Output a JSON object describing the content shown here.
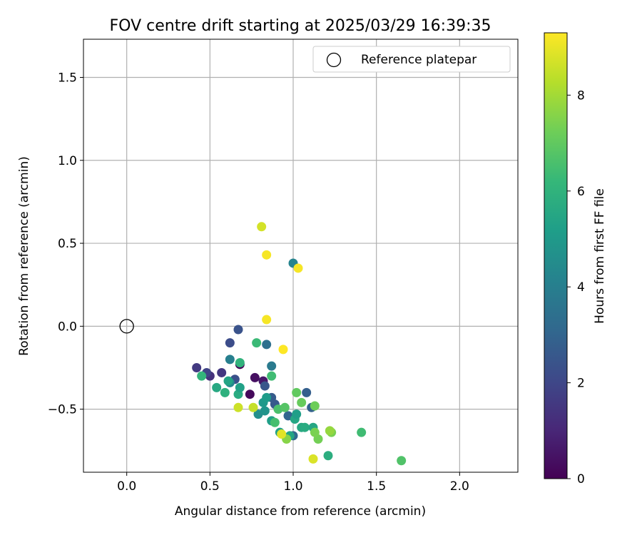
{
  "chart_data": {
    "type": "scatter",
    "title": "FOV centre drift starting at 2025/03/29 16:39:35",
    "xlabel": "Angular distance from reference (arcmin)",
    "ylabel": "Rotation from reference (arcmin)",
    "xlim": [
      -0.26,
      2.35
    ],
    "ylim": [
      -0.88,
      1.73
    ],
    "xticks": [
      0.0,
      0.5,
      1.0,
      1.5,
      2.0
    ],
    "xtick_labels": [
      "0.0",
      "0.5",
      "1.0",
      "1.5",
      "2.0"
    ],
    "yticks": [
      -0.5,
      0.0,
      0.5,
      1.0,
      1.5
    ],
    "ytick_labels": [
      "−0.5",
      "0.0",
      "0.5",
      "1.0",
      "1.5"
    ],
    "grid": true,
    "legend": {
      "placement": "top-right",
      "entries": [
        {
          "label": "Reference platepar",
          "marker": "open-circle"
        }
      ]
    },
    "reference_point": {
      "x": 0.0,
      "y": 0.0
    },
    "colorbar": {
      "label": "Hours from first FF file",
      "colormap": "viridis",
      "range": [
        0,
        9.3
      ],
      "ticks": [
        0,
        2,
        4,
        6,
        8
      ],
      "tick_labels": [
        "0",
        "2",
        "4",
        "6",
        "8"
      ]
    },
    "color_stops": [
      "#440154",
      "#482878",
      "#3e4989",
      "#31688e",
      "#26828e",
      "#1f9e89",
      "#35b779",
      "#6ece58",
      "#b5de2b",
      "#fde725"
    ],
    "points": [
      {
        "x": 0.68,
        "y": -0.23,
        "t": 0.1
      },
      {
        "x": 0.74,
        "y": -0.41,
        "t": 0.2
      },
      {
        "x": 0.77,
        "y": -0.31,
        "t": 0.4
      },
      {
        "x": 0.82,
        "y": -0.33,
        "t": 0.6
      },
      {
        "x": 0.5,
        "y": -0.3,
        "t": 1.3
      },
      {
        "x": 0.42,
        "y": -0.25,
        "t": 1.6
      },
      {
        "x": 0.48,
        "y": -0.28,
        "t": 1.9
      },
      {
        "x": 0.57,
        "y": -0.28,
        "t": 1.5
      },
      {
        "x": 0.62,
        "y": -0.1,
        "t": 2.2
      },
      {
        "x": 0.67,
        "y": -0.02,
        "t": 2.4
      },
      {
        "x": 0.65,
        "y": -0.32,
        "t": 2.3
      },
      {
        "x": 0.83,
        "y": -0.36,
        "t": 2.5
      },
      {
        "x": 0.87,
        "y": -0.43,
        "t": 2.7
      },
      {
        "x": 0.89,
        "y": -0.47,
        "t": 2.6
      },
      {
        "x": 0.97,
        "y": -0.54,
        "t": 3.0
      },
      {
        "x": 1.08,
        "y": -0.4,
        "t": 2.8
      },
      {
        "x": 1.11,
        "y": -0.49,
        "t": 2.9
      },
      {
        "x": 1.0,
        "y": -0.66,
        "t": 3.1
      },
      {
        "x": 0.84,
        "y": -0.11,
        "t": 3.4
      },
      {
        "x": 0.87,
        "y": -0.24,
        "t": 3.8
      },
      {
        "x": 1.0,
        "y": 0.38,
        "t": 4.2
      },
      {
        "x": 0.62,
        "y": -0.2,
        "t": 4.0
      },
      {
        "x": 0.62,
        "y": -0.34,
        "t": 4.3
      },
      {
        "x": 0.79,
        "y": -0.53,
        "t": 4.6
      },
      {
        "x": 0.83,
        "y": -0.51,
        "t": 4.8
      },
      {
        "x": 0.82,
        "y": -0.46,
        "t": 5.0
      },
      {
        "x": 0.84,
        "y": -0.43,
        "t": 5.1
      },
      {
        "x": 0.87,
        "y": -0.57,
        "t": 5.2
      },
      {
        "x": 0.92,
        "y": -0.64,
        "t": 5.3
      },
      {
        "x": 0.98,
        "y": -0.66,
        "t": 5.4
      },
      {
        "x": 1.01,
        "y": -0.56,
        "t": 5.5
      },
      {
        "x": 1.02,
        "y": -0.53,
        "t": 5.2
      },
      {
        "x": 1.05,
        "y": -0.61,
        "t": 5.6
      },
      {
        "x": 1.07,
        "y": -0.61,
        "t": 5.7
      },
      {
        "x": 1.12,
        "y": -0.61,
        "t": 5.5
      },
      {
        "x": 1.21,
        "y": -0.78,
        "t": 5.8
      },
      {
        "x": 0.54,
        "y": -0.37,
        "t": 5.6
      },
      {
        "x": 0.59,
        "y": -0.4,
        "t": 5.9
      },
      {
        "x": 0.61,
        "y": -0.33,
        "t": 5.4
      },
      {
        "x": 0.67,
        "y": -0.41,
        "t": 5.7
      },
      {
        "x": 0.68,
        "y": -0.37,
        "t": 5.3
      },
      {
        "x": 0.68,
        "y": -0.22,
        "t": 6.0
      },
      {
        "x": 0.45,
        "y": -0.3,
        "t": 6.1
      },
      {
        "x": 0.78,
        "y": -0.1,
        "t": 6.3
      },
      {
        "x": 0.87,
        "y": -0.3,
        "t": 6.4
      },
      {
        "x": 0.89,
        "y": -0.58,
        "t": 6.5
      },
      {
        "x": 0.91,
        "y": -0.5,
        "t": 6.6
      },
      {
        "x": 0.95,
        "y": -0.49,
        "t": 6.8
      },
      {
        "x": 1.02,
        "y": -0.4,
        "t": 7.0
      },
      {
        "x": 1.05,
        "y": -0.46,
        "t": 7.1
      },
      {
        "x": 1.13,
        "y": -0.48,
        "t": 7.2
      },
      {
        "x": 1.15,
        "y": -0.68,
        "t": 7.3
      },
      {
        "x": 1.13,
        "y": -0.64,
        "t": 7.4
      },
      {
        "x": 1.23,
        "y": -0.64,
        "t": 7.4
      },
      {
        "x": 1.41,
        "y": -0.64,
        "t": 6.4
      },
      {
        "x": 1.65,
        "y": -0.81,
        "t": 6.7
      },
      {
        "x": 0.96,
        "y": -0.68,
        "t": 7.6
      },
      {
        "x": 1.22,
        "y": -0.63,
        "t": 7.8
      },
      {
        "x": 0.67,
        "y": -0.49,
        "t": 8.6
      },
      {
        "x": 0.76,
        "y": -0.49,
        "t": 8.5
      },
      {
        "x": 0.81,
        "y": 0.6,
        "t": 8.7
      },
      {
        "x": 0.93,
        "y": -0.65,
        "t": 8.9
      },
      {
        "x": 1.12,
        "y": -0.8,
        "t": 8.8
      },
      {
        "x": 0.84,
        "y": 0.43,
        "t": 9.2
      },
      {
        "x": 1.03,
        "y": 0.35,
        "t": 9.2
      },
      {
        "x": 0.84,
        "y": 0.04,
        "t": 9.2
      },
      {
        "x": 0.94,
        "y": -0.14,
        "t": 9.3
      }
    ]
  }
}
